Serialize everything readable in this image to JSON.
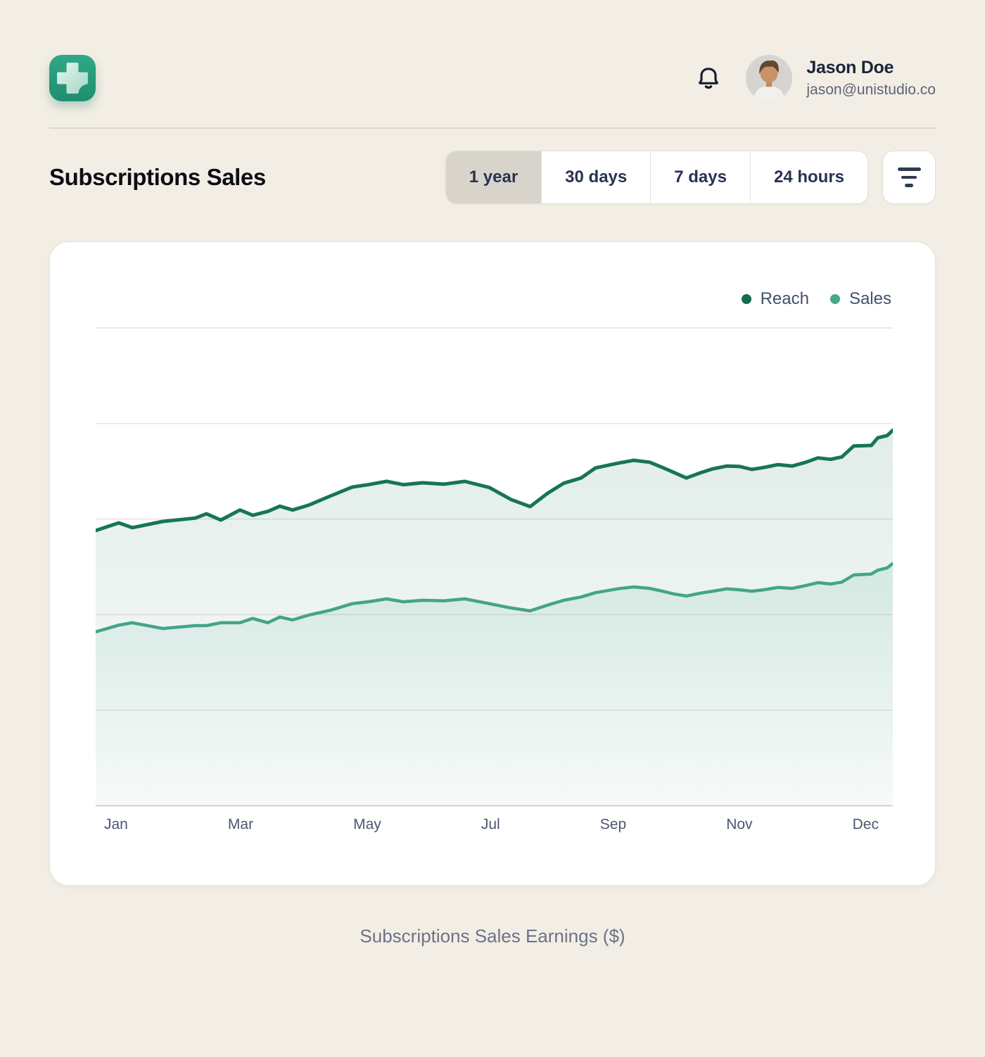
{
  "app": {
    "logo_icon": "plus-icon",
    "logo_color": "#29a183"
  },
  "header": {
    "bell_icon": "bell-icon",
    "user_name": "Jason Doe",
    "user_email": "jason@unistudio.co"
  },
  "toolbar": {
    "title": "Subscriptions Sales",
    "tabs": [
      {
        "label": "1 year",
        "selected": true
      },
      {
        "label": "30 days",
        "selected": false
      },
      {
        "label": "7 days",
        "selected": false
      },
      {
        "label": "24 hours",
        "selected": false
      }
    ],
    "filter_icon": "filter-icon"
  },
  "chart_card": {
    "caption": "Subscriptions Sales Earnings ($)"
  },
  "chart_data": {
    "type": "line",
    "title": "Subscriptions Sales",
    "x_labels": [
      "Jan",
      "Mar",
      "May",
      "Jul",
      "Sep",
      "Nov",
      "Dec"
    ],
    "ylim": [
      0,
      100
    ],
    "gridlines": [
      0,
      20,
      40,
      60,
      80,
      100
    ],
    "grid_color": "#e6e3dc",
    "axis_color": "#d9d5ce",
    "legend_position": "top-right",
    "area_fill": true,
    "x_pct": [
      0,
      2.9,
      4.6,
      8.4,
      12.5,
      13.9,
      15.7,
      18.1,
      19.7,
      21.6,
      23.1,
      24.7,
      26.7,
      29.4,
      32.2,
      34.2,
      36.5,
      38.6,
      41,
      43.7,
      46.3,
      49.4,
      52.1,
      54.5,
      56.7,
      58.7,
      60.9,
      62.7,
      65.5,
      67.5,
      69.5,
      71.1,
      72.6,
      74.1,
      75.9,
      77.4,
      79.2,
      80.8,
      82.3,
      83.8,
      85.6,
      87.4,
      89.1,
      90.6,
      92.2,
      93.6,
      95.1,
      97.3,
      98.1,
      99.3,
      100
    ],
    "series": [
      {
        "name": "Reach",
        "color": "#17745a",
        "dot_color": "#156a50",
        "stroke_width": 5,
        "values": [
          57.6,
          59.2,
          58.2,
          59.5,
          60.2,
          61.1,
          59.8,
          61.9,
          60.8,
          61.6,
          62.7,
          61.9,
          62.9,
          64.8,
          66.7,
          67.2,
          67.9,
          67.2,
          67.6,
          67.3,
          67.9,
          66.6,
          64.1,
          62.6,
          65.4,
          67.5,
          68.6,
          70.7,
          71.7,
          72.3,
          71.9,
          70.8,
          69.7,
          68.6,
          69.7,
          70.5,
          71.1,
          71,
          70.4,
          70.8,
          71.4,
          71.1,
          71.9,
          72.8,
          72.5,
          73,
          75.3,
          75.4,
          77,
          77.5,
          78.6
        ]
      },
      {
        "name": "Sales",
        "color": "#44a489",
        "dot_color": "#48a78b",
        "stroke_width": 4.5,
        "values": [
          36.4,
          37.8,
          38.3,
          37.1,
          37.7,
          37.7,
          38.3,
          38.3,
          39.2,
          38.3,
          39.5,
          38.9,
          39.9,
          40.9,
          42.3,
          42.7,
          43.3,
          42.7,
          43,
          42.9,
          43.3,
          42.3,
          41.4,
          40.8,
          42,
          43,
          43.7,
          44.6,
          45.4,
          45.8,
          45.5,
          44.9,
          44.3,
          43.9,
          44.5,
          44.9,
          45.4,
          45.2,
          44.9,
          45.2,
          45.7,
          45.5,
          46.1,
          46.7,
          46.4,
          46.8,
          48.3,
          48.5,
          49.3,
          49.8,
          50.7
        ]
      }
    ]
  }
}
